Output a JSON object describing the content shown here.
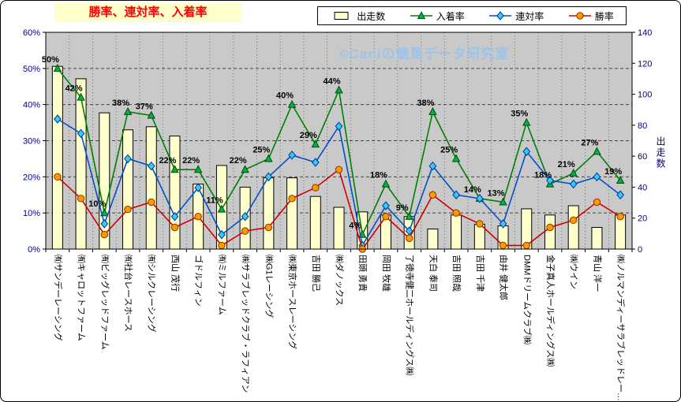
{
  "chart_data": {
    "type": "bar",
    "subtype": "combo-bar-line",
    "title": "勝率、連対率、入着率",
    "watermark": "©Caniの競馬データ研究室",
    "legend_position": "top",
    "grid": true,
    "plot_bg": "#C9C9C9",
    "title_bg": "#FFFFCC",
    "title_color": "#FF0000",
    "watermark_color": "#9CC3EA",
    "axis_label_color": "#000080",
    "categories": [
      "㈲サンデーレーシング",
      "㈲キャロットファーム",
      "㈲ビッグレッドファーム",
      "㈲社台レースホース",
      "㈲シルクレーシング",
      "西山 茂行",
      "ゴドルフィン",
      "㈲ミルファーム",
      "㈱サラブレッドクラブ・ラフィアン",
      "㈱G1レーシング",
      "㈱東京ホースレーシング",
      "吉田 勝己",
      "㈱ダノックス",
      "田頭 勇貴",
      "岡田 牧雄",
      "了徳寺健二ホールディングス㈱",
      "天白 泰司",
      "吉田 照哉",
      "吉田 千津",
      "由井 健太郎",
      "DMMドリームクラブ㈱",
      "金子真人ホールディングス㈱",
      "㈱ウイン",
      "青山 洋一",
      "㈱ノルマンディーサラブレッドレー…"
    ],
    "series": [
      {
        "name": "出走数",
        "type": "bar",
        "axis": "right",
        "fill": "#FFFFCC",
        "stroke": "#000000",
        "values": [
          118,
          110,
          88,
          77,
          79,
          73,
          42,
          54,
          40,
          46,
          46,
          34,
          27,
          24,
          22,
          21,
          13,
          22,
          16,
          15,
          26,
          22,
          28,
          14,
          22
        ]
      },
      {
        "name": "入着率",
        "type": "line",
        "marker": "triangle",
        "axis": "left",
        "color": "#008000",
        "marker_fill": "#00B050",
        "marker_stroke": "#004D00",
        "values": [
          50,
          42,
          10,
          38,
          37,
          22,
          22,
          11,
          22,
          25,
          40,
          29,
          44,
          4,
          18,
          9,
          38,
          25,
          14,
          13,
          35,
          18,
          21,
          27,
          19
        ],
        "data_labels": [
          "50%",
          "42%",
          "10%",
          "38%",
          "37%",
          "22%",
          "22%",
          "11%",
          "22%",
          "25%",
          "40%",
          "29%",
          "44%",
          "4%",
          "18%",
          "9%",
          "38%",
          "25%",
          "14%",
          "13%",
          "35%",
          "18%",
          "21%",
          "27%",
          "19%"
        ]
      },
      {
        "name": "連対率",
        "type": "line",
        "marker": "diamond",
        "axis": "left",
        "color": "#0050C8",
        "marker_fill": "#33CCFF",
        "marker_stroke": "#003399",
        "values": [
          36,
          32,
          7,
          25,
          23,
          9,
          17,
          4,
          9,
          20,
          26,
          24,
          34,
          1,
          12,
          5,
          23,
          15,
          14,
          7,
          27,
          19,
          18,
          20,
          15
        ]
      },
      {
        "name": "勝率",
        "type": "line",
        "marker": "circle",
        "axis": "left",
        "color": "#D00000",
        "marker_fill": "#FF9900",
        "marker_stroke": "#8A3200",
        "values": [
          20,
          14,
          4,
          11,
          13,
          6,
          9,
          1,
          5,
          6,
          14,
          17,
          22,
          0,
          9,
          3,
          15,
          10,
          7,
          1,
          1,
          6,
          8,
          13,
          9
        ]
      }
    ],
    "y_left": {
      "min": 0,
      "max": 60,
      "step": 10,
      "ticks": [
        "0%",
        "10%",
        "20%",
        "30%",
        "40%",
        "50%",
        "60%"
      ]
    },
    "y_right": {
      "min": 0,
      "max": 140,
      "step": 20,
      "label": "出走数",
      "ticks": [
        "0",
        "20",
        "40",
        "60",
        "80",
        "100",
        "120",
        "140"
      ]
    }
  }
}
